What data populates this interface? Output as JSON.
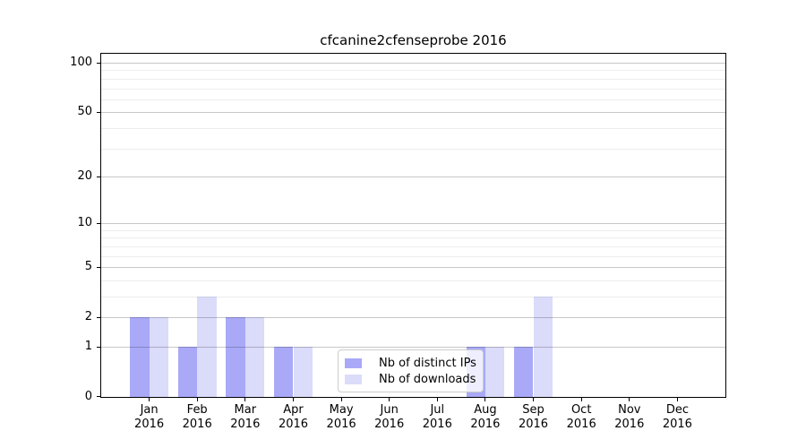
{
  "chart_data": {
    "type": "bar",
    "title": "cfcanine2cfenseprobe 2016",
    "categories": [
      {
        "month": "Jan",
        "year": "2016"
      },
      {
        "month": "Feb",
        "year": "2016"
      },
      {
        "month": "Mar",
        "year": "2016"
      },
      {
        "month": "Apr",
        "year": "2016"
      },
      {
        "month": "May",
        "year": "2016"
      },
      {
        "month": "Jun",
        "year": "2016"
      },
      {
        "month": "Jul",
        "year": "2016"
      },
      {
        "month": "Aug",
        "year": "2016"
      },
      {
        "month": "Sep",
        "year": "2016"
      },
      {
        "month": "Oct",
        "year": "2016"
      },
      {
        "month": "Nov",
        "year": "2016"
      },
      {
        "month": "Dec",
        "year": "2016"
      }
    ],
    "series": [
      {
        "name": "Nb of distinct IPs",
        "color": "#a9a9f8",
        "values": [
          2,
          1,
          2,
          1,
          0,
          0,
          0,
          1,
          1,
          0,
          0,
          0
        ]
      },
      {
        "name": "Nb of downloads",
        "color": "#dbdbfa",
        "values": [
          2,
          3,
          2,
          1,
          0,
          0,
          0,
          1,
          3,
          0,
          0,
          0
        ]
      }
    ],
    "xlabel": "",
    "ylabel": "",
    "yscale": "log-like (position ~ log10(1+v))",
    "yticks": [
      0,
      1,
      2,
      5,
      10,
      20,
      50,
      100
    ],
    "minor_yticks": [
      3,
      4,
      6,
      7,
      8,
      9,
      30,
      40,
      60,
      70,
      80,
      90
    ],
    "ylim": [
      0,
      113
    ],
    "grid": "horizontal major and minor gridlines",
    "legend_position": "lower center, inside plot"
  }
}
